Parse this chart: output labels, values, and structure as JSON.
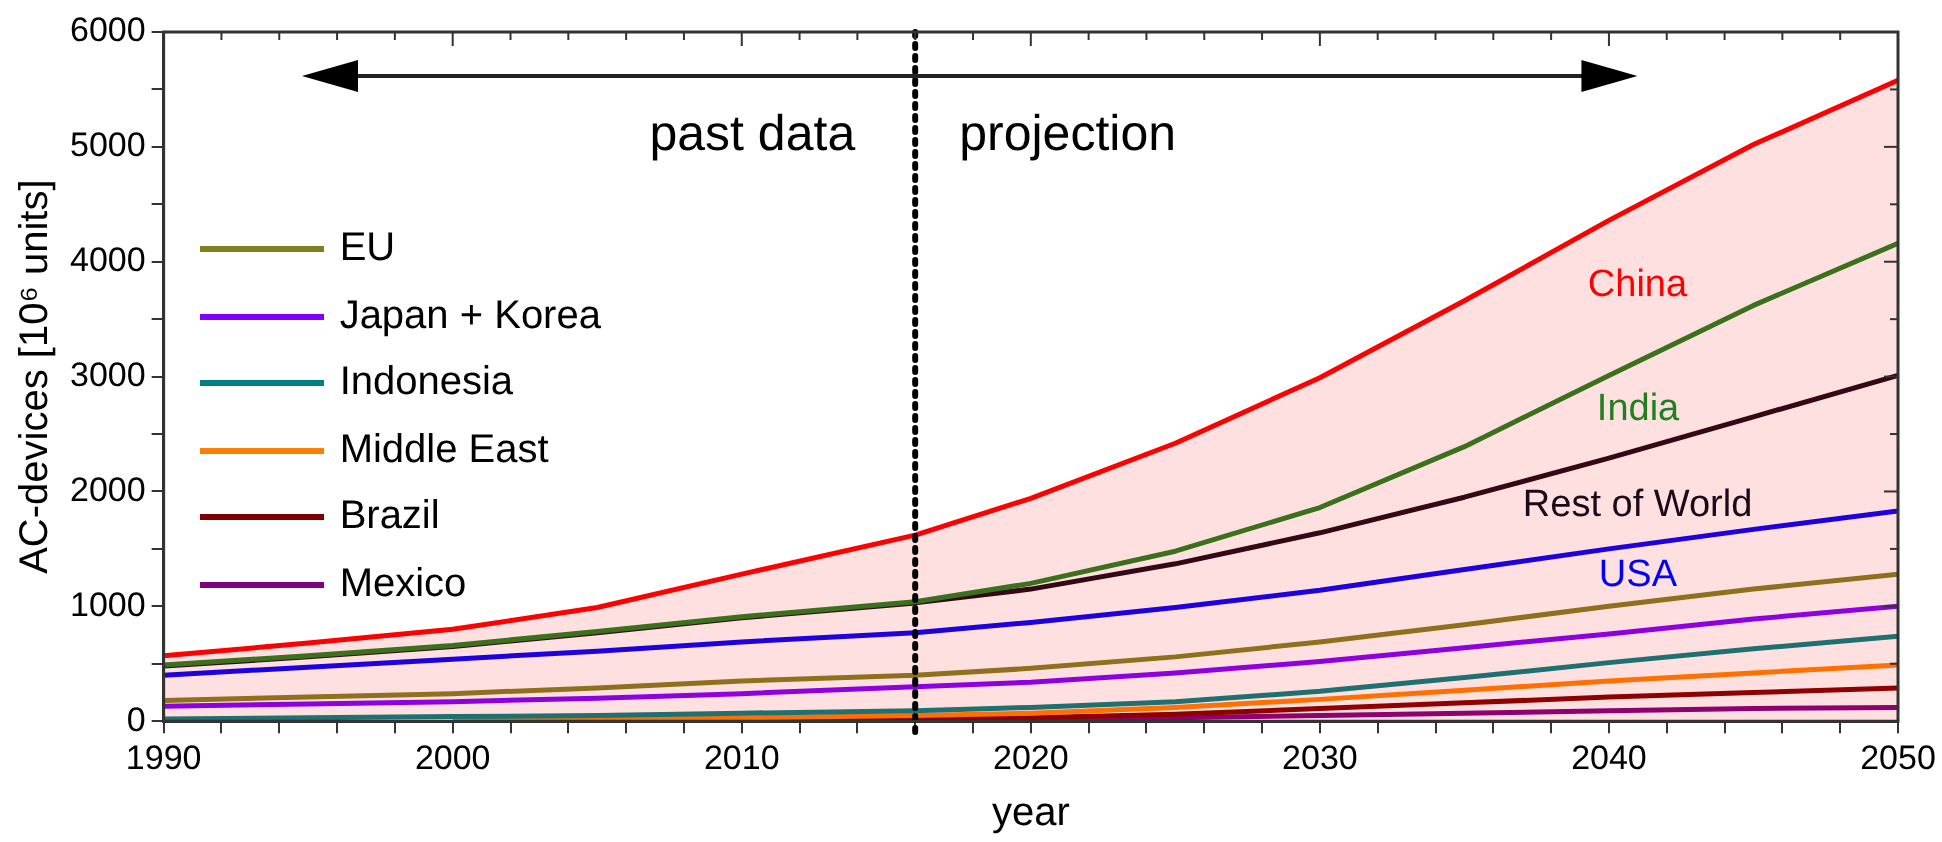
{
  "chart_data": {
    "type": "line",
    "xlabel": "year",
    "ylabel": "AC-devices [10⁶ units]",
    "x": [
      1990,
      1995,
      2000,
      2005,
      2010,
      2016,
      2020,
      2025,
      2030,
      2035,
      2040,
      2045,
      2050
    ],
    "series": [
      {
        "name": "China",
        "type": "area",
        "color": "#ff0000",
        "values": [
          570,
          680,
          800,
          990,
          1280,
          1620,
          1940,
          2420,
          2990,
          3660,
          4360,
          5020,
          5580
        ]
      },
      {
        "name": "India",
        "color": "#208020",
        "values": [
          490,
          570,
          660,
          780,
          910,
          1040,
          1200,
          1480,
          1860,
          2390,
          3010,
          3620,
          4160
        ]
      },
      {
        "name": "Rest of World",
        "color": "#1a0a1a",
        "values": [
          480,
          560,
          650,
          770,
          900,
          1030,
          1150,
          1370,
          1640,
          1950,
          2290,
          2650,
          3010
        ]
      },
      {
        "name": "USA",
        "color": "#0000ff",
        "values": [
          400,
          470,
          540,
          610,
          690,
          770,
          860,
          990,
          1140,
          1320,
          1500,
          1670,
          1830
        ]
      },
      {
        "name": "EU",
        "color": "#808020",
        "values": [
          180,
          210,
          240,
          290,
          350,
          400,
          460,
          560,
          690,
          840,
          1000,
          1150,
          1280
        ]
      },
      {
        "name": "Japan + Korea",
        "color": "#8000ff",
        "values": [
          130,
          150,
          170,
          200,
          240,
          300,
          340,
          420,
          520,
          640,
          760,
          890,
          1000
        ]
      },
      {
        "name": "Indonesia",
        "color": "#008080",
        "values": [
          20,
          30,
          40,
          50,
          70,
          90,
          120,
          170,
          260,
          380,
          510,
          630,
          740
        ]
      },
      {
        "name": "Middle East",
        "color": "#ff8000",
        "values": [
          null,
          null,
          20,
          20,
          30,
          50,
          70,
          120,
          190,
          270,
          350,
          420,
          490
        ]
      },
      {
        "name": "Brazil",
        "color": "#800000",
        "values": [
          null,
          null,
          null,
          10,
          20,
          20,
          30,
          60,
          110,
          160,
          210,
          250,
          290
        ]
      },
      {
        "name": "Mexico",
        "color": "#800080",
        "values": [
          null,
          null,
          null,
          null,
          null,
          10,
          20,
          30,
          50,
          70,
          90,
          110,
          120
        ]
      }
    ],
    "xlim": [
      1990,
      2050
    ],
    "xticks": [
      1990,
      {
        "value": 1992,
        "label": null
      },
      {
        "value": 1994,
        "label": null
      },
      {
        "value": 1996,
        "label": null
      },
      {
        "value": 1998,
        "label": null
      },
      2000,
      {
        "value": 2002,
        "label": null
      },
      {
        "value": 2004,
        "label": null
      },
      {
        "value": 2006,
        "label": null
      },
      {
        "value": 2008,
        "label": null
      },
      2010,
      {
        "value": 2012,
        "label": null
      },
      {
        "value": 2014,
        "label": null
      },
      {
        "value": 2016,
        "label": null
      },
      {
        "value": 2018,
        "label": null
      },
      2020,
      {
        "value": 2022,
        "label": null
      },
      {
        "value": 2024,
        "label": null
      },
      {
        "value": 2026,
        "label": null
      },
      {
        "value": 2028,
        "label": null
      },
      2030,
      {
        "value": 2032,
        "label": null
      },
      {
        "value": 2034,
        "label": null
      },
      {
        "value": 2036,
        "label": null
      },
      {
        "value": 2038,
        "label": null
      },
      2040,
      {
        "value": 2042,
        "label": null
      },
      {
        "value": 2044,
        "label": null
      },
      {
        "value": 2046,
        "label": null
      },
      {
        "value": 2048,
        "label": null
      },
      2050
    ],
    "ylim": [
      0,
      6000
    ],
    "yticks": [
      0,
      {
        "value": 500,
        "label": null
      },
      1000,
      {
        "value": 1500,
        "label": null
      },
      2000,
      {
        "value": 2500,
        "label": null
      },
      3000,
      {
        "value": 3500,
        "label": null
      },
      4000,
      {
        "value": 4500,
        "label": null
      },
      5000,
      {
        "value": 5500,
        "label": null
      },
      6000
    ],
    "ref_lines": [
      {
        "axis": "x",
        "value": 2016,
        "color": "#000000",
        "line_style": "dotted"
      }
    ],
    "annotations": [
      "past data",
      "projection"
    ],
    "legend": "left",
    "grid": false,
    "marker": "none",
    "line_style": "solid"
  }
}
